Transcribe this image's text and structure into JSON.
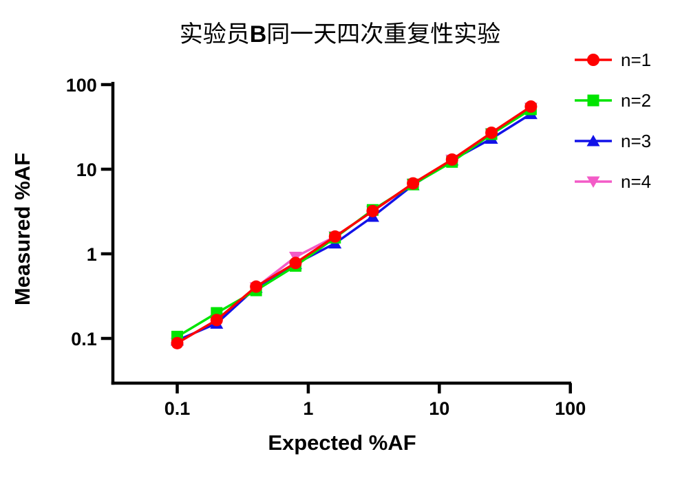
{
  "title": {
    "prefix": "实验员",
    "emph": "B",
    "suffix": "同一天四次重复性实验"
  },
  "legend": {
    "items": [
      {
        "label": "n=1",
        "color": "#fe0000",
        "marker": "circle"
      },
      {
        "label": "n=2",
        "color": "#00e400",
        "marker": "square"
      },
      {
        "label": "n=3",
        "color": "#1212e8",
        "marker": "triangle-up"
      },
      {
        "label": "n=4",
        "color": "#f35bc7",
        "marker": "triangle-down"
      }
    ]
  },
  "chart_data": {
    "type": "line",
    "title": "实验员B同一天四次重复性实验",
    "xlabel": "Expected %AF",
    "ylabel": "Measured %AF",
    "x_scale": "log",
    "y_scale": "log",
    "xlim": [
      0.033,
      100
    ],
    "ylim": [
      0.027,
      100
    ],
    "grid": false,
    "legend_position": "right",
    "x_ticks": [
      {
        "value": 0.1,
        "label": "0.1"
      },
      {
        "value": 1,
        "label": "1"
      },
      {
        "value": 10,
        "label": "10"
      },
      {
        "value": 100,
        "label": "100"
      }
    ],
    "y_ticks": [
      {
        "value": 0.1,
        "label": "0.1"
      },
      {
        "value": 1,
        "label": "1"
      },
      {
        "value": 10,
        "label": "10"
      },
      {
        "value": 100,
        "label": "100"
      }
    ],
    "x": [
      0.1,
      0.2,
      0.4,
      0.8,
      1.6,
      3.1,
      6.3,
      12.5,
      25,
      50
    ],
    "series": [
      {
        "name": "n=1",
        "marker": "circle",
        "color": "#fe0000",
        "values": [
          0.088,
          0.165,
          0.41,
          0.78,
          1.6,
          3.2,
          6.8,
          13.0,
          27.0,
          55.0
        ]
      },
      {
        "name": "n=2",
        "marker": "square",
        "color": "#00e400",
        "values": [
          0.105,
          0.2,
          0.37,
          0.72,
          1.55,
          3.3,
          6.6,
          12.2,
          26.0,
          51.0
        ]
      },
      {
        "name": "n=3",
        "marker": "triangle-up",
        "color": "#1212e8",
        "values": [
          0.095,
          0.15,
          0.4,
          0.76,
          1.33,
          2.75,
          6.5,
          12.8,
          23.0,
          45.0
        ]
      },
      {
        "name": "n=4",
        "marker": "triangle-down",
        "color": "#f35bc7",
        "values": [
          0.088,
          0.165,
          0.4,
          0.92,
          1.6,
          3.2,
          6.7,
          12.9,
          26.5,
          53.0
        ]
      }
    ]
  }
}
